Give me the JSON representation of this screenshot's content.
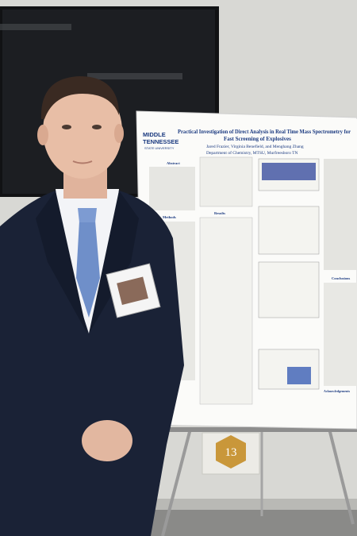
{
  "poster": {
    "logo": [
      "MIDDLE",
      "TENNESSEE",
      "STATE UNIVERSITY"
    ],
    "title_lines": [
      "Practical Investigation of Direct Analysis in Real Time Mass Spectrometry for",
      "Fast Screening of Explosives"
    ],
    "authors": "Jared Frazier, Virginia Benefield, and Menghang Zhang",
    "department": "Department of Chemistry, MTSU, Murfreesboro TN",
    "sections": [
      "Abstract",
      "Methods",
      "Results",
      "Conclusions",
      "Acknowledgements"
    ]
  },
  "sign": {
    "number": "13"
  }
}
